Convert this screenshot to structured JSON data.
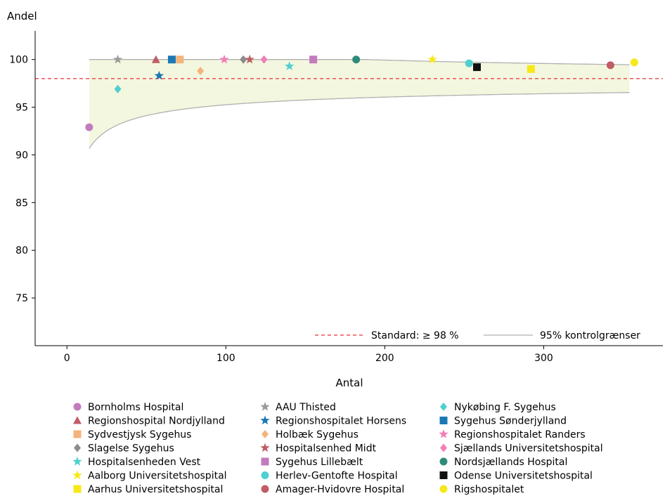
{
  "chart_data": {
    "type": "scatter",
    "title": "",
    "xlabel": "Antal",
    "ylabel": "Andel",
    "xlim": [
      -20,
      375
    ],
    "ylim": [
      70,
      103
    ],
    "xticks": [
      0,
      100,
      200,
      300
    ],
    "yticks": [
      75,
      80,
      85,
      90,
      95,
      100
    ],
    "grid": false,
    "standard": {
      "label": "Standard: ≥ 98 %",
      "value": 98,
      "color": "#e8303a"
    },
    "control_limits": {
      "label": "95% kontrolgrænser",
      "color": "#b0b0b0",
      "fill": "#f4f7df",
      "p": 98,
      "x_range": [
        14,
        354
      ]
    },
    "legend_position": "bottom",
    "series": [
      {
        "name": "Bornholms Hospital",
        "marker": "circle",
        "color": "#c27bbd",
        "x": 14,
        "y": 92.9
      },
      {
        "name": "AAU Thisted",
        "marker": "star",
        "color": "#9b9b9b",
        "x": 32,
        "y": 100
      },
      {
        "name": "Nykøbing F. Sygehus",
        "marker": "diamond",
        "color": "#4fcfcf",
        "x": 32,
        "y": 96.9
      },
      {
        "name": "Regionshospital Nordjylland",
        "marker": "triangle",
        "color": "#c05d65",
        "x": 56,
        "y": 100
      },
      {
        "name": "Regionshospitalet Horsens",
        "marker": "star",
        "color": "#1a78b4",
        "x": 58,
        "y": 98.3
      },
      {
        "name": "Sygehus Sønderjylland",
        "marker": "square",
        "color": "#1a78b4",
        "x": 66,
        "y": 100
      },
      {
        "name": "Sydvestjysk Sygehus",
        "marker": "square",
        "color": "#f4b47c",
        "x": 71,
        "y": 100
      },
      {
        "name": "Holbæk Sygehus",
        "marker": "diamond",
        "color": "#f4b47c",
        "x": 84,
        "y": 98.8
      },
      {
        "name": "Regionshospitalet Randers",
        "marker": "star",
        "color": "#f27fb8",
        "x": 99,
        "y": 100
      },
      {
        "name": "Slagelse Sygehus",
        "marker": "diamond",
        "color": "#8c8c8c",
        "x": 111,
        "y": 100
      },
      {
        "name": "Hospitalsenhed Midt",
        "marker": "star",
        "color": "#c05d65",
        "x": 115,
        "y": 100
      },
      {
        "name": "Sjællands Universitetshospital",
        "marker": "diamond",
        "color": "#f27fb8",
        "x": 124,
        "y": 100
      },
      {
        "name": "Hospitalsenheden Vest",
        "marker": "star",
        "color": "#4fcfcf",
        "x": 140,
        "y": 99.3
      },
      {
        "name": "Sygehus Lillebælt",
        "marker": "square",
        "color": "#c27bbd",
        "x": 155,
        "y": 100
      },
      {
        "name": "Nordsjællands Hospital",
        "marker": "circle",
        "color": "#2e8b7a",
        "x": 182,
        "y": 100
      },
      {
        "name": "Aalborg Universitetshospital",
        "marker": "star",
        "color": "#f7e81a",
        "x": 230,
        "y": 100
      },
      {
        "name": "Herlev-Gentofte Hospital",
        "marker": "circle",
        "color": "#4fcfcf",
        "x": 253,
        "y": 99.6
      },
      {
        "name": "Odense Universitetshospital",
        "marker": "square",
        "color": "#111111",
        "x": 258,
        "y": 99.2
      },
      {
        "name": "Aarhus Universitetshospital",
        "marker": "square",
        "color": "#f7e81a",
        "x": 292,
        "y": 99.0
      },
      {
        "name": "Amager-Hvidovre Hospital",
        "marker": "circle",
        "color": "#c05d65",
        "x": 342,
        "y": 99.4
      },
      {
        "name": "Rigshospitalet",
        "marker": "circle",
        "color": "#f7e81a",
        "x": 357,
        "y": 99.7
      }
    ],
    "legend_order": [
      "Bornholms Hospital",
      "AAU Thisted",
      "Nykøbing F. Sygehus",
      "Regionshospital Nordjylland",
      "Regionshospitalet Horsens",
      "Sygehus Sønderjylland",
      "Sydvestjysk Sygehus",
      "Holbæk Sygehus",
      "Regionshospitalet Randers",
      "Slagelse Sygehus",
      "Hospitalsenhed Midt",
      "Sjællands Universitetshospital",
      "Hospitalsenheden Vest",
      "Sygehus Lillebælt",
      "Nordsjællands Hospital",
      "Aalborg Universitetshospital",
      "Herlev-Gentofte Hospital",
      "Odense Universitetshospital",
      "Aarhus Universitetshospital",
      "Amager-Hvidovre Hospital",
      "Rigshospitalet"
    ]
  }
}
